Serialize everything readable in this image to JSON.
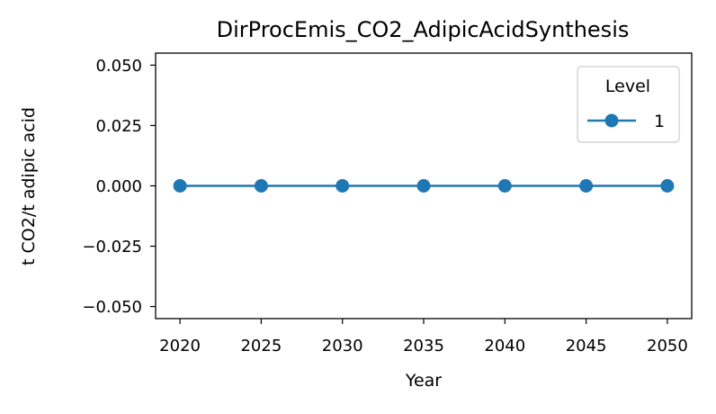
{
  "chart_data": {
    "type": "line",
    "title": "DirProcEmis_CO2_AdipicAcidSynthesis",
    "xlabel": "Year",
    "ylabel": "t CO2/t adipic acid",
    "x": [
      2020,
      2025,
      2030,
      2035,
      2040,
      2045,
      2050
    ],
    "xlim": [
      2018.5,
      2051.5
    ],
    "xticks": [
      "2020",
      "2025",
      "2030",
      "2035",
      "2040",
      "2045",
      "2050"
    ],
    "ylim": [
      -0.055,
      0.055
    ],
    "yticks": [
      "0.050",
      "0.025",
      "0.000",
      "−0.025",
      "−0.050"
    ],
    "ytick_values": [
      0.05,
      0.025,
      0.0,
      -0.025,
      -0.05
    ],
    "series": [
      {
        "name": "1",
        "values": [
          0,
          0,
          0,
          0,
          0,
          0,
          0
        ],
        "color": "#1f77b4",
        "marker": "circle"
      }
    ],
    "legend": {
      "title": "Level",
      "placement": "top-right"
    },
    "grid": false
  }
}
